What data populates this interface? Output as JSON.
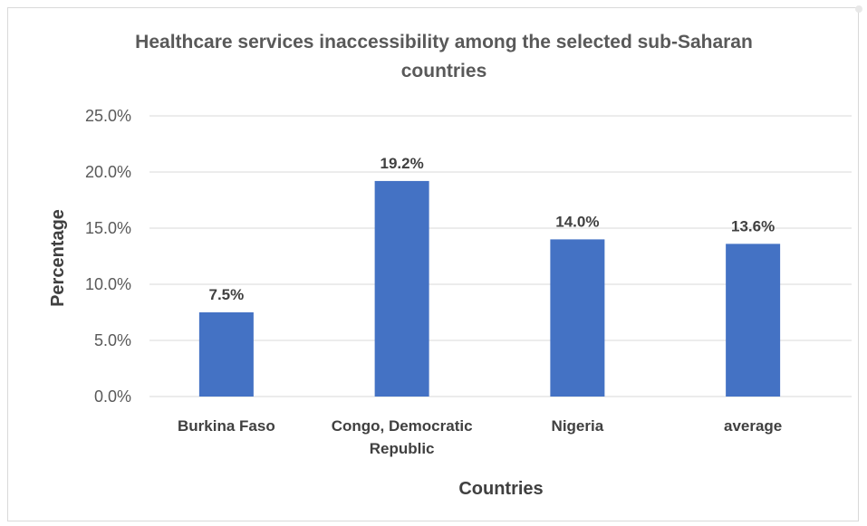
{
  "chart_data": {
    "type": "bar",
    "title_lines": [
      "Healthcare services inaccessibility among the selected sub-Saharan",
      "countries"
    ],
    "xlabel": "Countries",
    "ylabel": "Percentage",
    "categories": [
      [
        "Burkina Faso"
      ],
      [
        "Congo, Democratic",
        "Republic"
      ],
      [
        "Nigeria"
      ],
      [
        "average"
      ]
    ],
    "values": [
      7.5,
      19.2,
      14.0,
      13.6
    ],
    "data_labels": [
      "7.5%",
      "19.2%",
      "14.0%",
      "13.6%"
    ],
    "ylim": [
      0,
      25
    ],
    "yticks": [
      0,
      5,
      10,
      15,
      20,
      25
    ],
    "ytick_labels": [
      "0.0%",
      "5.0%",
      "10.0%",
      "15.0%",
      "20.0%",
      "25.0%"
    ],
    "grid": true,
    "legend": "none",
    "bar_color": "#4472C4",
    "grid_color": "#d9d9d9"
  }
}
